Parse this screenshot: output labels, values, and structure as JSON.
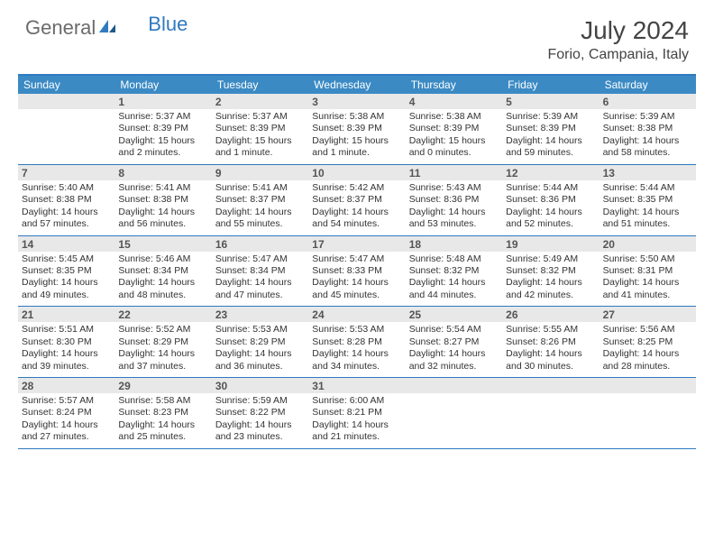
{
  "brand": {
    "part1": "General",
    "part2": "Blue"
  },
  "title": "July 2024",
  "location": "Forio, Campania, Italy",
  "daynames": [
    "Sunday",
    "Monday",
    "Tuesday",
    "Wednesday",
    "Thursday",
    "Friday",
    "Saturday"
  ],
  "colors": {
    "accent": "#2f7ac0",
    "header_bg": "#3b8ac4",
    "daynum_bg": "#e8e8e8",
    "text": "#333333"
  },
  "weeks": [
    [
      {
        "num": "",
        "lines": []
      },
      {
        "num": "1",
        "lines": [
          "Sunrise: 5:37 AM",
          "Sunset: 8:39 PM",
          "Daylight: 15 hours",
          "and 2 minutes."
        ]
      },
      {
        "num": "2",
        "lines": [
          "Sunrise: 5:37 AM",
          "Sunset: 8:39 PM",
          "Daylight: 15 hours",
          "and 1 minute."
        ]
      },
      {
        "num": "3",
        "lines": [
          "Sunrise: 5:38 AM",
          "Sunset: 8:39 PM",
          "Daylight: 15 hours",
          "and 1 minute."
        ]
      },
      {
        "num": "4",
        "lines": [
          "Sunrise: 5:38 AM",
          "Sunset: 8:39 PM",
          "Daylight: 15 hours",
          "and 0 minutes."
        ]
      },
      {
        "num": "5",
        "lines": [
          "Sunrise: 5:39 AM",
          "Sunset: 8:39 PM",
          "Daylight: 14 hours",
          "and 59 minutes."
        ]
      },
      {
        "num": "6",
        "lines": [
          "Sunrise: 5:39 AM",
          "Sunset: 8:38 PM",
          "Daylight: 14 hours",
          "and 58 minutes."
        ]
      }
    ],
    [
      {
        "num": "7",
        "lines": [
          "Sunrise: 5:40 AM",
          "Sunset: 8:38 PM",
          "Daylight: 14 hours",
          "and 57 minutes."
        ]
      },
      {
        "num": "8",
        "lines": [
          "Sunrise: 5:41 AM",
          "Sunset: 8:38 PM",
          "Daylight: 14 hours",
          "and 56 minutes."
        ]
      },
      {
        "num": "9",
        "lines": [
          "Sunrise: 5:41 AM",
          "Sunset: 8:37 PM",
          "Daylight: 14 hours",
          "and 55 minutes."
        ]
      },
      {
        "num": "10",
        "lines": [
          "Sunrise: 5:42 AM",
          "Sunset: 8:37 PM",
          "Daylight: 14 hours",
          "and 54 minutes."
        ]
      },
      {
        "num": "11",
        "lines": [
          "Sunrise: 5:43 AM",
          "Sunset: 8:36 PM",
          "Daylight: 14 hours",
          "and 53 minutes."
        ]
      },
      {
        "num": "12",
        "lines": [
          "Sunrise: 5:44 AM",
          "Sunset: 8:36 PM",
          "Daylight: 14 hours",
          "and 52 minutes."
        ]
      },
      {
        "num": "13",
        "lines": [
          "Sunrise: 5:44 AM",
          "Sunset: 8:35 PM",
          "Daylight: 14 hours",
          "and 51 minutes."
        ]
      }
    ],
    [
      {
        "num": "14",
        "lines": [
          "Sunrise: 5:45 AM",
          "Sunset: 8:35 PM",
          "Daylight: 14 hours",
          "and 49 minutes."
        ]
      },
      {
        "num": "15",
        "lines": [
          "Sunrise: 5:46 AM",
          "Sunset: 8:34 PM",
          "Daylight: 14 hours",
          "and 48 minutes."
        ]
      },
      {
        "num": "16",
        "lines": [
          "Sunrise: 5:47 AM",
          "Sunset: 8:34 PM",
          "Daylight: 14 hours",
          "and 47 minutes."
        ]
      },
      {
        "num": "17",
        "lines": [
          "Sunrise: 5:47 AM",
          "Sunset: 8:33 PM",
          "Daylight: 14 hours",
          "and 45 minutes."
        ]
      },
      {
        "num": "18",
        "lines": [
          "Sunrise: 5:48 AM",
          "Sunset: 8:32 PM",
          "Daylight: 14 hours",
          "and 44 minutes."
        ]
      },
      {
        "num": "19",
        "lines": [
          "Sunrise: 5:49 AM",
          "Sunset: 8:32 PM",
          "Daylight: 14 hours",
          "and 42 minutes."
        ]
      },
      {
        "num": "20",
        "lines": [
          "Sunrise: 5:50 AM",
          "Sunset: 8:31 PM",
          "Daylight: 14 hours",
          "and 41 minutes."
        ]
      }
    ],
    [
      {
        "num": "21",
        "lines": [
          "Sunrise: 5:51 AM",
          "Sunset: 8:30 PM",
          "Daylight: 14 hours",
          "and 39 minutes."
        ]
      },
      {
        "num": "22",
        "lines": [
          "Sunrise: 5:52 AM",
          "Sunset: 8:29 PM",
          "Daylight: 14 hours",
          "and 37 minutes."
        ]
      },
      {
        "num": "23",
        "lines": [
          "Sunrise: 5:53 AM",
          "Sunset: 8:29 PM",
          "Daylight: 14 hours",
          "and 36 minutes."
        ]
      },
      {
        "num": "24",
        "lines": [
          "Sunrise: 5:53 AM",
          "Sunset: 8:28 PM",
          "Daylight: 14 hours",
          "and 34 minutes."
        ]
      },
      {
        "num": "25",
        "lines": [
          "Sunrise: 5:54 AM",
          "Sunset: 8:27 PM",
          "Daylight: 14 hours",
          "and 32 minutes."
        ]
      },
      {
        "num": "26",
        "lines": [
          "Sunrise: 5:55 AM",
          "Sunset: 8:26 PM",
          "Daylight: 14 hours",
          "and 30 minutes."
        ]
      },
      {
        "num": "27",
        "lines": [
          "Sunrise: 5:56 AM",
          "Sunset: 8:25 PM",
          "Daylight: 14 hours",
          "and 28 minutes."
        ]
      }
    ],
    [
      {
        "num": "28",
        "lines": [
          "Sunrise: 5:57 AM",
          "Sunset: 8:24 PM",
          "Daylight: 14 hours",
          "and 27 minutes."
        ]
      },
      {
        "num": "29",
        "lines": [
          "Sunrise: 5:58 AM",
          "Sunset: 8:23 PM",
          "Daylight: 14 hours",
          "and 25 minutes."
        ]
      },
      {
        "num": "30",
        "lines": [
          "Sunrise: 5:59 AM",
          "Sunset: 8:22 PM",
          "Daylight: 14 hours",
          "and 23 minutes."
        ]
      },
      {
        "num": "31",
        "lines": [
          "Sunrise: 6:00 AM",
          "Sunset: 8:21 PM",
          "Daylight: 14 hours",
          "and 21 minutes."
        ]
      },
      {
        "num": "",
        "lines": []
      },
      {
        "num": "",
        "lines": []
      },
      {
        "num": "",
        "lines": []
      }
    ]
  ]
}
